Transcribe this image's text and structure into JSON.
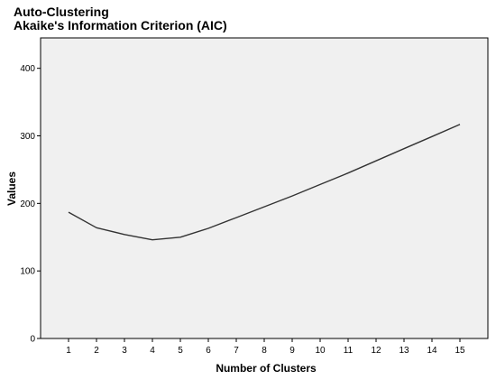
{
  "chart_data": {
    "type": "line",
    "title": "Auto-Clustering",
    "subtitle": "Akaike's Information Criterion (AIC)",
    "xlabel": "Number of Clusters",
    "ylabel": "Values",
    "x": [
      1,
      2,
      3,
      4,
      5,
      6,
      7,
      8,
      9,
      10,
      11,
      12,
      13,
      14,
      15
    ],
    "series": [
      {
        "values": [
          187,
          164,
          154,
          146,
          150,
          163,
          179,
          195,
          211,
          228,
          245,
          263,
          281,
          299,
          317
        ]
      }
    ],
    "xlim": [
      0,
      16
    ],
    "ylim": [
      0,
      445
    ],
    "yticks": [
      0,
      100,
      200,
      300,
      400
    ],
    "xticks": [
      1,
      2,
      3,
      4,
      5,
      6,
      7,
      8,
      9,
      10,
      11,
      12,
      13,
      14,
      15
    ],
    "grid": false,
    "legend": "none",
    "colors": {
      "plot_background": "#f0f0f0",
      "line": "#333333",
      "axis": "#000000"
    }
  }
}
